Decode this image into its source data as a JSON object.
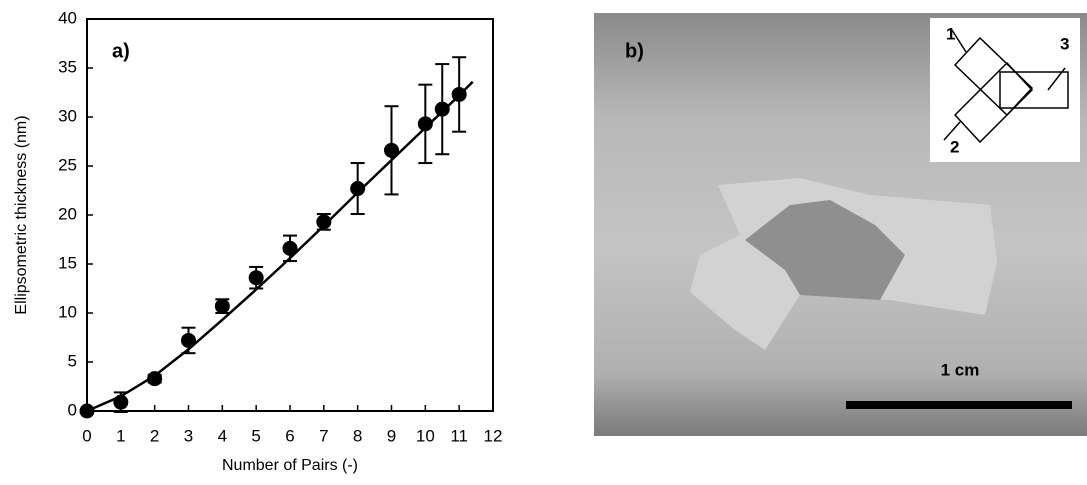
{
  "chart_data": {
    "type": "scatter",
    "annotations": [
      "a)"
    ],
    "x_label": "Number of Pairs (-)",
    "y_label": "Ellipsometric thickness (nm)",
    "x": [
      0,
      1,
      2,
      3,
      4,
      5,
      6,
      7,
      8,
      9,
      10,
      10.5,
      11
    ],
    "values": [
      0,
      0.9,
      3.3,
      7.2,
      10.7,
      13.6,
      16.6,
      19.3,
      22.7,
      26.6,
      29.3,
      30.8,
      32.3
    ],
    "errors": [
      0,
      1,
      0.4,
      1.3,
      0.7,
      1.1,
      1.3,
      0.8,
      2.6,
      4.5,
      4,
      4.6,
      3.8
    ],
    "color": "#000000",
    "fit": {
      "x": [
        0,
        1,
        2,
        3,
        4,
        5,
        6,
        7,
        8,
        9,
        10,
        11,
        11.4
      ],
      "values": [
        0,
        1.5,
        3.6,
        6.3,
        9.3,
        12.4,
        15.6,
        18.9,
        22.3,
        25.6,
        28.9,
        32.2,
        33.6
      ]
    },
    "xlim": [
      0,
      12
    ],
    "xticks": [
      0,
      1,
      2,
      3,
      4,
      5,
      6,
      7,
      8,
      9,
      10,
      11,
      12
    ],
    "ylim": [
      0,
      40
    ],
    "yticks": [
      0,
      5,
      10,
      15,
      20,
      25,
      30,
      35,
      40
    ],
    "grid": false
  },
  "panel_b": {
    "label": "b)",
    "inset_labels": [
      "1",
      "2",
      "3"
    ],
    "scale_bar": "1 cm"
  }
}
